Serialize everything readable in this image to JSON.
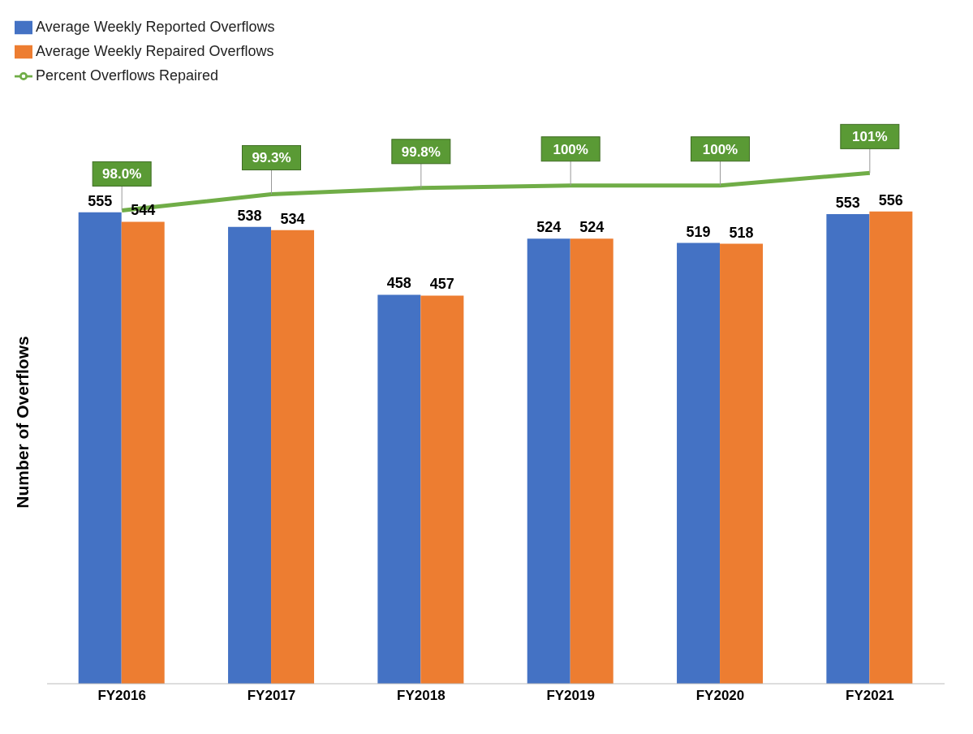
{
  "chart_data": {
    "type": "bar",
    "ylabel": "Number of Overflows",
    "categories": [
      "FY2016",
      "FY2017",
      "FY2018",
      "FY2019",
      "FY2020",
      "FY2021"
    ],
    "series": [
      {
        "name": "Average Weekly Reported Overflows",
        "color": "#4472c4",
        "values": [
          555,
          538,
          458,
          524,
          519,
          553
        ]
      },
      {
        "name": "Average Weekly Repaired Overflows",
        "color": "#ed7d31",
        "values": [
          544,
          534,
          457,
          524,
          518,
          556
        ]
      },
      {
        "name": "Percent Overflows Repaired",
        "type": "line",
        "axis": "y2",
        "color": "#70ad47",
        "values": [
          98.0,
          99.3,
          99.8,
          100,
          100,
          101
        ],
        "value_labels": [
          "98.0%",
          "99.3%",
          "99.8%",
          "100%",
          "100%",
          "101%"
        ]
      }
    ],
    "y2lim": [
      60,
      102
    ],
    "data_labels": true,
    "grid": false,
    "legend": "top left",
    "tick_labels": "x",
    "marker": "none"
  }
}
